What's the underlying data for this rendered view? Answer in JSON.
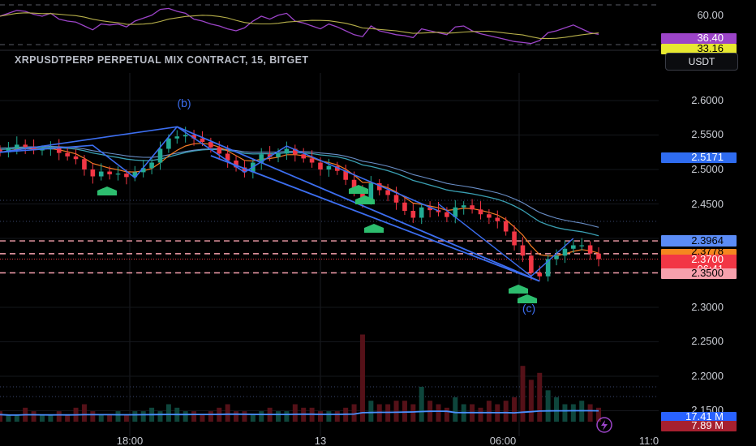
{
  "header": {
    "symbol_title": "XRPUSDTPERP PERPETUAL MIX CONTRACT, 15, BITGET",
    "currency_button": "USDT"
  },
  "rsi_panel": {
    "level_label": "60.00",
    "badges": [
      {
        "text": "36.40",
        "bg": "#9c44c8",
        "fg": "#ffffff"
      },
      {
        "text": "33.16",
        "bg": "#e7e830",
        "fg": "#000000"
      }
    ]
  },
  "price_axis": {
    "ticks": [
      "2.6000",
      "2.5500",
      "2.5000",
      "2.4500",
      "2.3000",
      "2.2500",
      "2.2000",
      "2.1500"
    ],
    "badges": [
      {
        "text": "2.5171",
        "bg": "#2f6cf0",
        "fg": "#ffffff"
      },
      {
        "text": "2.3964",
        "bg": "#5b8cf6",
        "fg": "#000000"
      },
      {
        "text": "2.3778",
        "bg": "#f5861f",
        "fg": "#000000"
      },
      {
        "text": "2.3700",
        "bg": "#f23645",
        "fg": "#ffffff"
      },
      {
        "text": "06:41",
        "bg": "#f23645",
        "fg": "#ffffff"
      },
      {
        "text": "2.3500",
        "bg": "#f7a1ad",
        "fg": "#000000"
      },
      {
        "text": "17.41 M",
        "bg": "#2962ff",
        "fg": "#ffffff"
      },
      {
        "text": "7.89 M",
        "bg": "#a6202f",
        "fg": "#ffffff"
      }
    ]
  },
  "time_axis": {
    "ticks": [
      "18:00",
      "13",
      "06:00",
      "11:0"
    ]
  },
  "annotations": {
    "wave_b": "(b)",
    "wave_c": "(c)"
  },
  "colors": {
    "up": "#22ab94",
    "down": "#f23645",
    "wave_line": "#3c6ef0",
    "ema_fast": "#f57c25",
    "ema_slow": "#3aa0b3",
    "ma_line": "#6a8fc8",
    "dashed_levels": "#f7a1ad",
    "signal_marker": "#2dbd6e"
  },
  "chart_data": {
    "type": "candlestick",
    "timeframe": "15",
    "price_ylim": [
      2.125,
      2.63
    ],
    "horizontal_levels": [
      2.3964,
      2.3778,
      2.35
    ],
    "price_series": [
      2.525,
      2.531,
      2.536,
      2.533,
      2.528,
      2.529,
      2.532,
      2.524,
      2.519,
      2.515,
      2.5,
      2.49,
      2.497,
      2.493,
      2.494,
      2.489,
      2.496,
      2.502,
      2.51,
      2.53,
      2.545,
      2.548,
      2.55,
      2.545,
      2.54,
      2.532,
      2.523,
      2.513,
      2.503,
      2.496,
      2.51,
      2.522,
      2.518,
      2.523,
      2.53,
      2.522,
      2.516,
      2.51,
      2.5,
      2.505,
      2.498,
      2.485,
      2.47,
      2.455,
      2.48,
      2.47,
      2.463,
      2.452,
      2.44,
      2.43,
      2.445,
      2.441,
      2.438,
      2.431,
      2.445,
      2.448,
      2.442,
      2.435,
      2.43,
      2.425,
      2.41,
      2.39,
      2.375,
      2.35,
      2.345,
      2.37,
      2.375,
      2.385,
      2.39,
      2.39,
      2.378,
      2.37
    ],
    "volume_series": [
      3,
      2,
      2,
      4,
      3,
      2,
      2,
      3,
      2,
      4,
      5,
      3,
      2,
      2,
      3,
      2,
      3,
      3,
      4,
      3,
      5,
      4,
      3,
      3,
      2,
      3,
      4,
      5,
      3,
      3,
      2,
      3,
      4,
      3,
      3,
      5,
      4,
      4,
      3,
      3,
      3,
      4,
      5,
      25,
      6,
      5,
      5,
      6,
      6,
      5,
      10,
      6,
      5,
      4,
      7,
      5,
      5,
      4,
      6,
      5,
      6,
      7,
      16,
      12,
      14,
      9,
      7,
      5,
      5,
      6,
      5,
      4
    ],
    "rsi_series": [
      55,
      58,
      61,
      60,
      57,
      55,
      58,
      52,
      50,
      49,
      45,
      41,
      47,
      46,
      47,
      44,
      50,
      53,
      56,
      62,
      63,
      60,
      58,
      52,
      50,
      47,
      45,
      42,
      40,
      43,
      50,
      55,
      52,
      56,
      58,
      50,
      48,
      45,
      42,
      47,
      44,
      40,
      36,
      34,
      45,
      40,
      38,
      36,
      35,
      33,
      42,
      40,
      38,
      36,
      44,
      45,
      40,
      37,
      35,
      33,
      31,
      29,
      28,
      27,
      30,
      38,
      40,
      43,
      46,
      42,
      38,
      36.4
    ]
  }
}
